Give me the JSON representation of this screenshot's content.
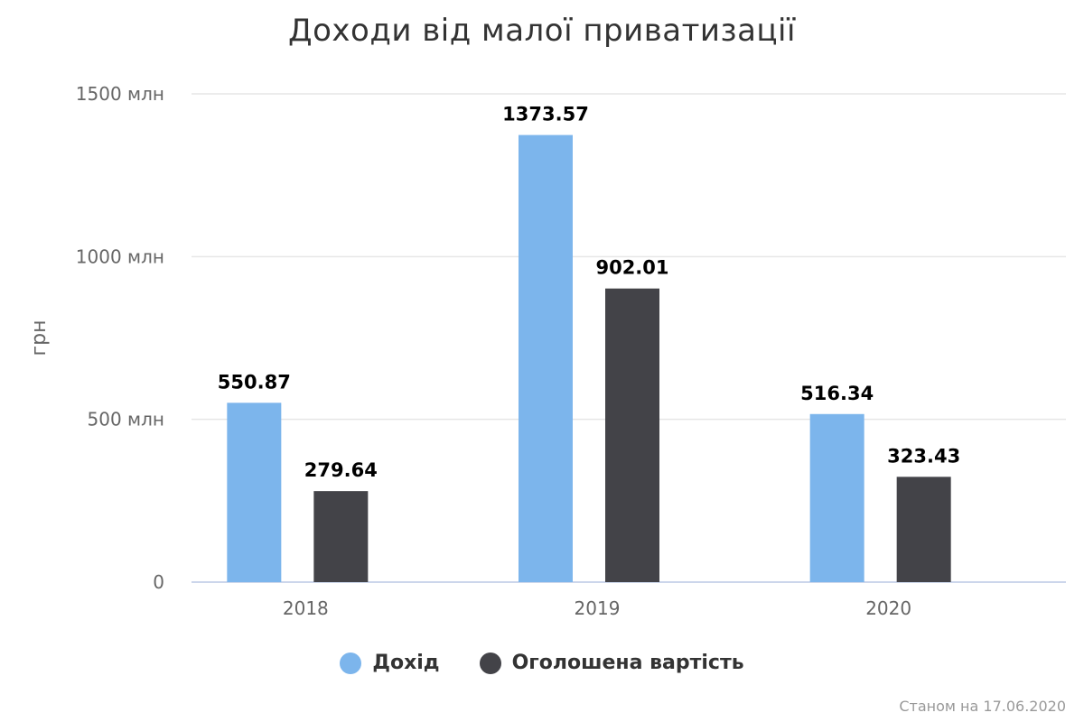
{
  "chart_data": {
    "type": "bar",
    "title": "Доходи від малої приватизації",
    "ylabel": "грн",
    "xlabel": "",
    "categories": [
      "2018",
      "2019",
      "2020"
    ],
    "series": [
      {
        "name": "Дохід",
        "color": "#7cb5ec",
        "values": [
          550.87,
          1373.57,
          516.34
        ],
        "labels": [
          "550.87",
          "1373.57",
          "516.34"
        ]
      },
      {
        "name": "Оголошена вартість",
        "color": "#434348",
        "values": [
          279.64,
          902.01,
          323.43
        ],
        "labels": [
          "279.64",
          "902.01",
          "323.43"
        ]
      }
    ],
    "ylim": [
      0,
      1500
    ],
    "yticks": [
      0,
      500,
      1000,
      1500
    ],
    "ytick_labels": [
      "0",
      "500 млн",
      "1000 млн",
      "1500 млн"
    ],
    "grid": true,
    "legend": "bottom-center",
    "credit": "Станом на 17.06.2020"
  }
}
